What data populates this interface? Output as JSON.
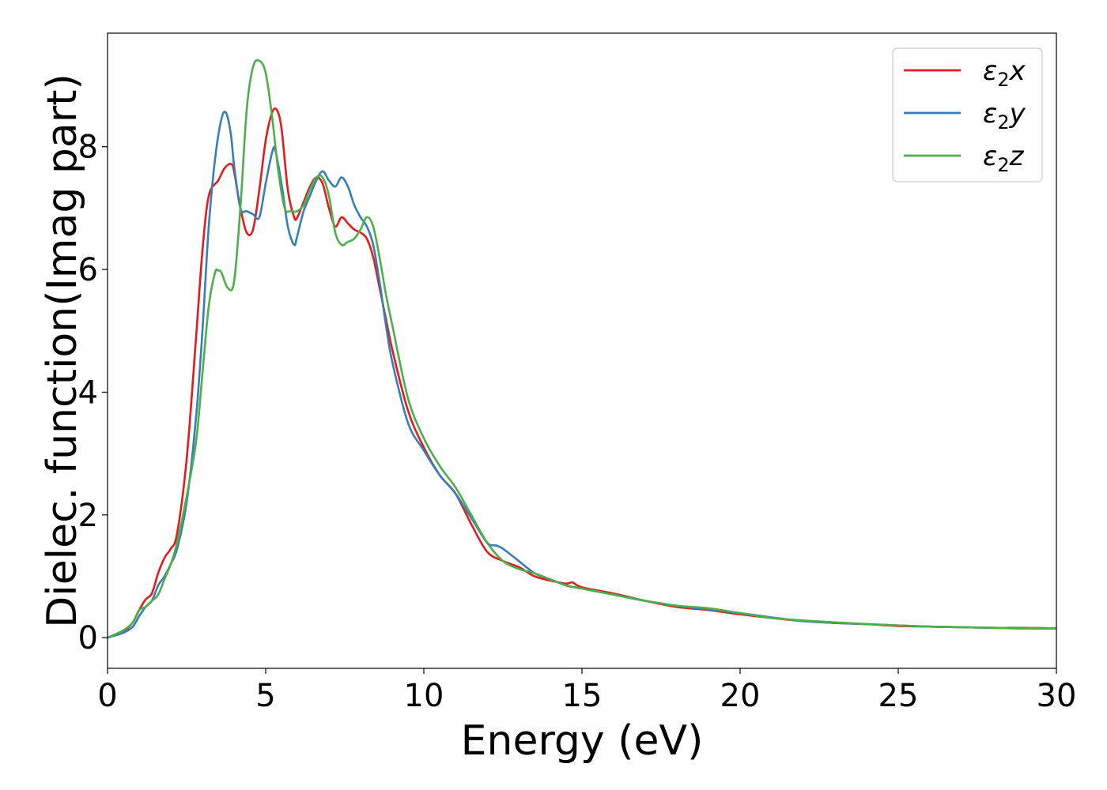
{
  "chart_data": {
    "type": "line",
    "title": "",
    "xlabel": "Energy (eV)",
    "ylabel": "Dielec. function(Imag part)",
    "xlim": [
      0,
      30
    ],
    "ylim": [
      -0.5,
      9.85
    ],
    "x_ticks": [
      0,
      5,
      10,
      15,
      20,
      25,
      30
    ],
    "y_ticks": [
      0,
      2,
      4,
      6,
      8
    ],
    "grid": false,
    "legend_position": "top-right",
    "series": [
      {
        "name": "ε2x",
        "legend_base": "ε",
        "legend_sub": "2",
        "legend_var": "x",
        "color": "#e41a1c",
        "x": [
          0,
          0.5,
          0.8,
          1.0,
          1.2,
          1.4,
          1.6,
          1.8,
          2.0,
          2.2,
          2.5,
          2.8,
          3.0,
          3.2,
          3.5,
          3.7,
          3.9,
          4.0,
          4.2,
          4.4,
          4.6,
          4.8,
          5.0,
          5.2,
          5.35,
          5.5,
          5.7,
          5.9,
          6.0,
          6.2,
          6.4,
          6.6,
          6.8,
          7.0,
          7.2,
          7.4,
          7.6,
          7.8,
          8.0,
          8.2,
          8.4,
          8.6,
          8.8,
          9.0,
          9.5,
          10.0,
          10.5,
          11.0,
          11.5,
          12.0,
          12.5,
          13.0,
          13.5,
          14.0,
          14.5,
          14.7,
          15.0,
          16.0,
          17.0,
          18.0,
          19.0,
          20.0,
          21.0,
          22.0,
          23.0,
          24.0,
          25.0,
          26.0,
          27.0,
          28.0,
          29.0,
          30.0
        ],
        "y": [
          0,
          0.1,
          0.25,
          0.45,
          0.62,
          0.72,
          1.05,
          1.3,
          1.45,
          1.7,
          2.9,
          4.9,
          6.3,
          7.2,
          7.45,
          7.65,
          7.72,
          7.6,
          7.0,
          6.6,
          6.65,
          7.3,
          8.1,
          8.55,
          8.6,
          8.3,
          7.3,
          6.85,
          6.85,
          7.1,
          7.35,
          7.5,
          7.4,
          7.0,
          6.7,
          6.85,
          6.75,
          6.65,
          6.6,
          6.5,
          6.2,
          5.7,
          5.2,
          4.7,
          3.7,
          3.1,
          2.65,
          2.35,
          1.85,
          1.4,
          1.25,
          1.15,
          1.0,
          0.93,
          0.88,
          0.9,
          0.82,
          0.72,
          0.6,
          0.5,
          0.45,
          0.38,
          0.32,
          0.27,
          0.24,
          0.22,
          0.19,
          0.18,
          0.17,
          0.16,
          0.16,
          0.15
        ]
      },
      {
        "name": "ε2y",
        "legend_base": "ε",
        "legend_sub": "2",
        "legend_var": "y",
        "color": "#377eb8",
        "x": [
          0,
          0.5,
          0.8,
          1.0,
          1.2,
          1.4,
          1.6,
          1.8,
          2.0,
          2.2,
          2.5,
          2.8,
          3.0,
          3.2,
          3.4,
          3.6,
          3.75,
          3.9,
          4.0,
          4.2,
          4.4,
          4.6,
          4.8,
          5.0,
          5.2,
          5.3,
          5.5,
          5.7,
          5.9,
          6.0,
          6.2,
          6.4,
          6.6,
          6.8,
          7.0,
          7.2,
          7.4,
          7.6,
          7.8,
          8.0,
          8.2,
          8.4,
          8.6,
          8.8,
          9.0,
          9.5,
          10.0,
          10.5,
          11.0,
          11.5,
          12.0,
          12.3,
          12.5,
          13.0,
          13.5,
          14.0,
          14.5,
          15.0,
          16.0,
          17.0,
          18.0,
          19.0,
          20.0,
          21.0,
          22.0,
          23.0,
          24.0,
          25.0,
          26.0,
          27.0,
          28.0,
          29.0,
          30.0
        ],
        "y": [
          0,
          0.08,
          0.18,
          0.35,
          0.5,
          0.6,
          0.85,
          1.0,
          1.2,
          1.45,
          2.2,
          3.6,
          5.0,
          6.7,
          7.8,
          8.45,
          8.55,
          8.2,
          7.7,
          7.0,
          6.95,
          6.9,
          6.85,
          7.4,
          7.9,
          7.95,
          7.4,
          6.7,
          6.4,
          6.55,
          6.95,
          7.2,
          7.45,
          7.6,
          7.45,
          7.35,
          7.5,
          7.35,
          7.05,
          6.85,
          6.7,
          6.4,
          5.8,
          5.1,
          4.5,
          3.5,
          3.05,
          2.65,
          2.35,
          1.95,
          1.55,
          1.5,
          1.45,
          1.25,
          1.05,
          0.95,
          0.85,
          0.8,
          0.7,
          0.6,
          0.52,
          0.46,
          0.4,
          0.33,
          0.27,
          0.24,
          0.22,
          0.2,
          0.18,
          0.17,
          0.16,
          0.15,
          0.15
        ]
      },
      {
        "name": "ε2z",
        "legend_base": "ε",
        "legend_sub": "2",
        "legend_var": "z",
        "color": "#4daf4a",
        "x": [
          0,
          0.5,
          0.8,
          1.0,
          1.2,
          1.4,
          1.6,
          1.8,
          2.0,
          2.2,
          2.5,
          2.8,
          3.0,
          3.2,
          3.4,
          3.5,
          3.6,
          3.8,
          4.0,
          4.2,
          4.4,
          4.6,
          4.8,
          5.0,
          5.2,
          5.4,
          5.6,
          5.8,
          6.0,
          6.2,
          6.4,
          6.6,
          6.8,
          7.0,
          7.2,
          7.4,
          7.6,
          7.8,
          8.0,
          8.2,
          8.4,
          8.6,
          8.8,
          9.0,
          9.5,
          10.0,
          10.5,
          11.0,
          11.5,
          12.0,
          12.5,
          13.0,
          13.5,
          14.0,
          14.5,
          15.0,
          16.0,
          17.0,
          18.0,
          19.0,
          20.0,
          21.0,
          22.0,
          23.0,
          24.0,
          25.0,
          26.0,
          27.0,
          28.0,
          29.0,
          30.0
        ],
        "y": [
          0,
          0.12,
          0.25,
          0.45,
          0.5,
          0.6,
          0.7,
          0.95,
          1.2,
          1.55,
          2.3,
          3.2,
          4.3,
          5.4,
          5.95,
          5.98,
          5.95,
          5.7,
          5.8,
          7.0,
          8.6,
          9.3,
          9.4,
          9.2,
          8.5,
          7.6,
          7.0,
          6.95,
          6.95,
          7.05,
          7.3,
          7.5,
          7.5,
          7.2,
          6.6,
          6.4,
          6.45,
          6.5,
          6.65,
          6.85,
          6.7,
          6.2,
          5.6,
          5.1,
          3.9,
          3.25,
          2.8,
          2.45,
          2.0,
          1.55,
          1.25,
          1.12,
          1.05,
          0.95,
          0.85,
          0.8,
          0.7,
          0.6,
          0.52,
          0.48,
          0.4,
          0.32,
          0.28,
          0.25,
          0.22,
          0.2,
          0.18,
          0.17,
          0.16,
          0.16,
          0.15
        ]
      }
    ]
  }
}
